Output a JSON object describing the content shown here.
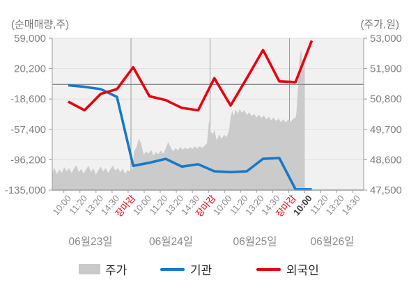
{
  "chart": {
    "highlighted_x_label": {
      "day_index": 3,
      "time": "10:00"
    },
    "close_label": "장마감"
  },
  "legend": {
    "items": [
      {
        "label": "주가",
        "swatch": "area",
        "color": "#c9c9c9"
      },
      {
        "label": "기관",
        "swatch": "line",
        "color": "#1778c8"
      },
      {
        "label": "외국인",
        "swatch": "line",
        "color": "#e8000e"
      }
    ]
  },
  "chart_data": {
    "type": "area+line combo (dual axis intraday stock chart)",
    "title": "",
    "days": [
      "06월23일",
      "06월24일",
      "06월25일",
      "06월26일"
    ],
    "time_labels_per_day": [
      "10:00",
      "11:20",
      "13:20",
      "14:30",
      "장마감"
    ],
    "left_axis": {
      "label": "(순매매량,주)",
      "ylim": [
        -135000,
        59000
      ],
      "ticks": [
        59000,
        20200,
        -18600,
        -57400,
        -96200,
        -135000
      ]
    },
    "right_axis": {
      "label": "(주가,원)",
      "ylim": [
        47500,
        53000
      ],
      "ticks": [
        53000,
        51900,
        50800,
        49700,
        48600,
        47500
      ]
    },
    "zero_reference_line": 0,
    "slot_labels": [
      "06월23일 10:00",
      "06월23일 11:20",
      "06월23일 13:20",
      "06월23일 14:30",
      "06월23일 장마감",
      "06월24일 10:00",
      "06월24일 11:20",
      "06월24일 13:20",
      "06월24일 14:30",
      "06월24일 장마감",
      "06월25일 10:00",
      "06월25일 11:20",
      "06월25일 13:20",
      "06월25일 14:30",
      "06월25일 장마감",
      "06월26일 10:00"
    ],
    "series": [
      {
        "name": "주가",
        "type": "area",
        "axis": "right",
        "color": "#cbcbcb",
        "points": [
          [
            -1.0,
            48150
          ],
          [
            -0.85,
            48300
          ],
          [
            -0.7,
            48080
          ],
          [
            -0.55,
            48250
          ],
          [
            -0.4,
            48120
          ],
          [
            -0.25,
            48330
          ],
          [
            -0.1,
            48180
          ],
          [
            0.05,
            48300
          ],
          [
            0.2,
            48120
          ],
          [
            0.35,
            48280
          ],
          [
            0.5,
            48400
          ],
          [
            0.65,
            48150
          ],
          [
            0.8,
            48270
          ],
          [
            0.95,
            48100
          ],
          [
            1.1,
            48250
          ],
          [
            1.25,
            48380
          ],
          [
            1.4,
            48160
          ],
          [
            1.55,
            48290
          ],
          [
            1.7,
            48060
          ],
          [
            1.85,
            48220
          ],
          [
            2.0,
            48350
          ],
          [
            2.15,
            48170
          ],
          [
            2.3,
            48300
          ],
          [
            2.45,
            48120
          ],
          [
            2.6,
            48260
          ],
          [
            2.75,
            48390
          ],
          [
            2.9,
            48200
          ],
          [
            3.05,
            48310
          ],
          [
            3.2,
            48150
          ],
          [
            3.35,
            48280
          ],
          [
            3.5,
            48080
          ],
          [
            3.65,
            48230
          ],
          [
            3.8,
            48170
          ],
          [
            3.95,
            48250
          ],
          [
            4.05,
            48900
          ],
          [
            4.2,
            49050
          ],
          [
            4.35,
            49380
          ],
          [
            4.5,
            49150
          ],
          [
            4.65,
            48780
          ],
          [
            4.8,
            48900
          ],
          [
            4.95,
            48820
          ],
          [
            5.1,
            48960
          ],
          [
            5.25,
            48750
          ],
          [
            5.4,
            48880
          ],
          [
            5.55,
            48800
          ],
          [
            5.7,
            48930
          ],
          [
            5.85,
            48820
          ],
          [
            6.0,
            49000
          ],
          [
            6.15,
            49240
          ],
          [
            6.3,
            49060
          ],
          [
            6.45,
            48900
          ],
          [
            6.6,
            49020
          ],
          [
            6.75,
            48940
          ],
          [
            6.9,
            49060
          ],
          [
            7.05,
            48960
          ],
          [
            7.2,
            49040
          ],
          [
            7.35,
            48980
          ],
          [
            7.5,
            49060
          ],
          [
            7.65,
            48990
          ],
          [
            7.8,
            49080
          ],
          [
            7.95,
            49010
          ],
          [
            8.1,
            49090
          ],
          [
            8.25,
            49030
          ],
          [
            8.4,
            49110
          ],
          [
            8.55,
            49200
          ],
          [
            8.67,
            50020
          ],
          [
            8.78,
            49620
          ],
          [
            8.9,
            49520
          ],
          [
            9.0,
            49680
          ],
          [
            9.05,
            49550
          ],
          [
            9.15,
            49300
          ],
          [
            9.3,
            49520
          ],
          [
            9.45,
            49360
          ],
          [
            9.6,
            49500
          ],
          [
            9.75,
            49420
          ],
          [
            9.9,
            49650
          ],
          [
            10.0,
            50120
          ],
          [
            10.1,
            50380
          ],
          [
            10.2,
            50180
          ],
          [
            10.3,
            50430
          ],
          [
            10.45,
            50260
          ],
          [
            10.55,
            50440
          ],
          [
            10.7,
            50300
          ],
          [
            10.85,
            50400
          ],
          [
            11.0,
            50220
          ],
          [
            11.15,
            50320
          ],
          [
            11.3,
            50180
          ],
          [
            11.45,
            50260
          ],
          [
            11.6,
            50140
          ],
          [
            11.75,
            50230
          ],
          [
            11.9,
            50120
          ],
          [
            12.05,
            50200
          ],
          [
            12.2,
            50060
          ],
          [
            12.35,
            50160
          ],
          [
            12.5,
            50030
          ],
          [
            12.65,
            50130
          ],
          [
            12.8,
            50000
          ],
          [
            12.95,
            50090
          ],
          [
            13.1,
            49960
          ],
          [
            13.25,
            50070
          ],
          [
            13.4,
            49940
          ],
          [
            13.55,
            50060
          ],
          [
            13.7,
            49980
          ],
          [
            13.85,
            50080
          ],
          [
            14.0,
            50120
          ],
          [
            14.05,
            50300
          ],
          [
            14.1,
            50700
          ],
          [
            14.15,
            51200
          ],
          [
            14.2,
            51800
          ],
          [
            14.25,
            52250
          ],
          [
            14.3,
            52480
          ],
          [
            14.35,
            52560
          ],
          [
            14.4,
            52200
          ],
          [
            14.45,
            51950
          ],
          [
            14.5,
            52050
          ],
          [
            14.57,
            52150
          ]
        ]
      },
      {
        "name": "기관",
        "type": "line",
        "axis": "left",
        "color": "#1778c8",
        "values": [
          -1000,
          -3000,
          -6000,
          -16000,
          -104000,
          -100000,
          -95000,
          -105000,
          -102000,
          -111000,
          -112000,
          -111000,
          -95000,
          -94000,
          -134000,
          -134000
        ]
      },
      {
        "name": "외국인",
        "type": "line",
        "axis": "left",
        "color": "#e8000e",
        "values": [
          -22000,
          -33000,
          -12000,
          -6000,
          22000,
          -15000,
          -20000,
          -30000,
          -33000,
          8000,
          -27000,
          8000,
          44000,
          4000,
          3000,
          56000
        ]
      }
    ],
    "legend_position": "bottom",
    "grid": true
  }
}
